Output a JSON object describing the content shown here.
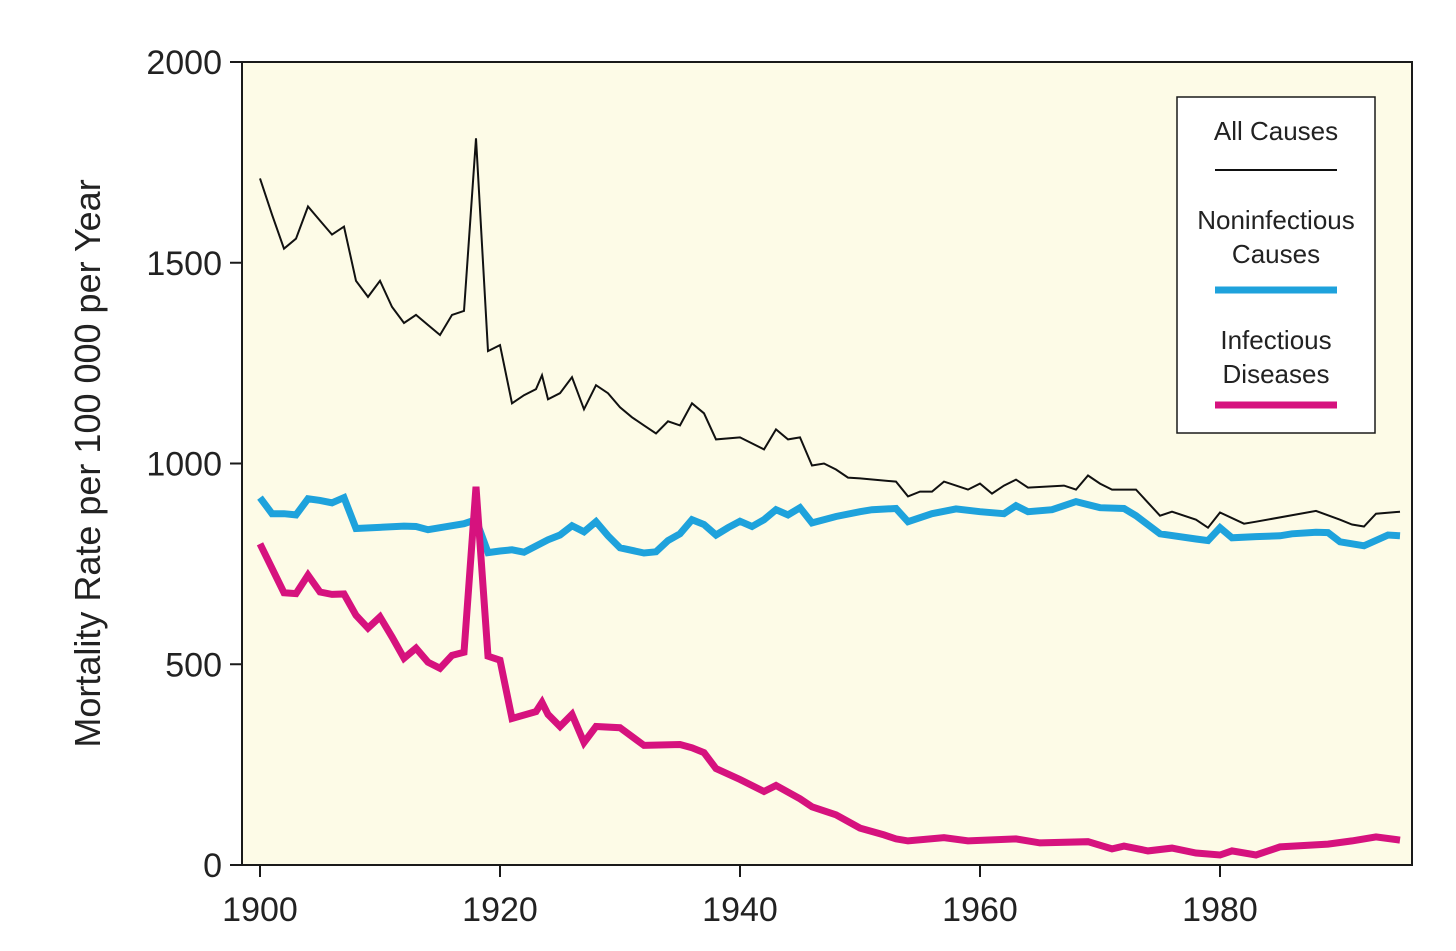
{
  "chart_data": {
    "type": "line",
    "title": "",
    "xlabel": "",
    "ylabel": "Mortality Rate per 100 000 per Year",
    "xlim": [
      1898.5,
      1996
    ],
    "ylim": [
      0,
      2000
    ],
    "x_ticks": [
      1900,
      1920,
      1940,
      1960,
      1980
    ],
    "y_ticks": [
      0,
      500,
      1000,
      1500,
      2000
    ],
    "x_tick_labels": [
      "1900",
      "1920",
      "1940",
      "1960",
      "1980"
    ],
    "y_tick_labels": [
      "0",
      "500",
      "1000",
      "1500",
      "2000"
    ],
    "grid": false,
    "background_color": "#fdfbe7",
    "legend": {
      "position": "top-right",
      "entries": [
        {
          "lines": [
            "All Causes"
          ],
          "color": "#111111"
        },
        {
          "lines": [
            "Noninfectious",
            "Causes"
          ],
          "color": "#1ea2dc"
        },
        {
          "lines": [
            "Infectious",
            "Diseases"
          ],
          "color": "#d6127e"
        }
      ]
    },
    "series": [
      {
        "name": "All Causes",
        "color": "#111111",
        "width": 2,
        "points": [
          [
            1900,
            1710
          ],
          [
            1901,
            1620
          ],
          [
            1902,
            1535
          ],
          [
            1903,
            1560
          ],
          [
            1904,
            1640
          ],
          [
            1905,
            1605
          ],
          [
            1906,
            1570
          ],
          [
            1907,
            1590
          ],
          [
            1908,
            1455
          ],
          [
            1909,
            1415
          ],
          [
            1910,
            1455
          ],
          [
            1911,
            1390
          ],
          [
            1912,
            1350
          ],
          [
            1913,
            1370
          ],
          [
            1914,
            1345
          ],
          [
            1915,
            1320
          ],
          [
            1916,
            1370
          ],
          [
            1917,
            1380
          ],
          [
            1918,
            1810
          ],
          [
            1919,
            1280
          ],
          [
            1920,
            1295
          ],
          [
            1921,
            1150
          ],
          [
            1922,
            1170
          ],
          [
            1923,
            1185
          ],
          [
            1923.5,
            1220
          ],
          [
            1924,
            1160
          ],
          [
            1925,
            1175
          ],
          [
            1926,
            1215
          ],
          [
            1927,
            1135
          ],
          [
            1928,
            1195
          ],
          [
            1929,
            1175
          ],
          [
            1930,
            1140
          ],
          [
            1931,
            1115
          ],
          [
            1932,
            1095
          ],
          [
            1933,
            1075
          ],
          [
            1934,
            1105
          ],
          [
            1935,
            1095
          ],
          [
            1936,
            1150
          ],
          [
            1937,
            1125
          ],
          [
            1938,
            1060
          ],
          [
            1940,
            1065
          ],
          [
            1942,
            1035
          ],
          [
            1943,
            1085
          ],
          [
            1944,
            1060
          ],
          [
            1945,
            1065
          ],
          [
            1946,
            995
          ],
          [
            1947,
            1000
          ],
          [
            1948,
            985
          ],
          [
            1949,
            965
          ],
          [
            1950,
            963
          ],
          [
            1953,
            955
          ],
          [
            1954,
            918
          ],
          [
            1955,
            930
          ],
          [
            1956,
            930
          ],
          [
            1957,
            955
          ],
          [
            1958,
            945
          ],
          [
            1959,
            935
          ],
          [
            1960,
            950
          ],
          [
            1961,
            925
          ],
          [
            1962,
            945
          ],
          [
            1963,
            960
          ],
          [
            1964,
            940
          ],
          [
            1967,
            945
          ],
          [
            1968,
            935
          ],
          [
            1969,
            970
          ],
          [
            1970,
            950
          ],
          [
            1971,
            935
          ],
          [
            1973,
            935
          ],
          [
            1975,
            870
          ],
          [
            1976,
            880
          ],
          [
            1978,
            860
          ],
          [
            1979,
            840
          ],
          [
            1980,
            878
          ],
          [
            1982,
            850
          ],
          [
            1983,
            855
          ],
          [
            1988,
            882
          ],
          [
            1990,
            860
          ],
          [
            1991,
            848
          ],
          [
            1992,
            843
          ],
          [
            1993,
            875
          ],
          [
            1995,
            880
          ]
        ]
      },
      {
        "name": "Noninfectious Causes",
        "color": "#1ea2dc",
        "width": 7,
        "points": [
          [
            1900,
            915
          ],
          [
            1901,
            875
          ],
          [
            1902,
            875
          ],
          [
            1903,
            872
          ],
          [
            1904,
            912
          ],
          [
            1905,
            908
          ],
          [
            1906,
            902
          ],
          [
            1907,
            915
          ],
          [
            1908,
            838
          ],
          [
            1912,
            844
          ],
          [
            1913,
            843
          ],
          [
            1914,
            835
          ],
          [
            1915,
            840
          ],
          [
            1917,
            850
          ],
          [
            1918,
            860
          ],
          [
            1919,
            778
          ],
          [
            1920,
            782
          ],
          [
            1921,
            785
          ],
          [
            1922,
            779
          ],
          [
            1924,
            810
          ],
          [
            1925,
            822
          ],
          [
            1926,
            845
          ],
          [
            1927,
            830
          ],
          [
            1928,
            855
          ],
          [
            1929,
            820
          ],
          [
            1930,
            790
          ],
          [
            1932,
            777
          ],
          [
            1933,
            780
          ],
          [
            1934,
            808
          ],
          [
            1935,
            825
          ],
          [
            1936,
            860
          ],
          [
            1937,
            848
          ],
          [
            1938,
            822
          ],
          [
            1939,
            840
          ],
          [
            1940,
            856
          ],
          [
            1941,
            843
          ],
          [
            1942,
            860
          ],
          [
            1943,
            885
          ],
          [
            1944,
            872
          ],
          [
            1945,
            890
          ],
          [
            1946,
            852
          ],
          [
            1948,
            868
          ],
          [
            1950,
            880
          ],
          [
            1951,
            885
          ],
          [
            1953,
            888
          ],
          [
            1954,
            855
          ],
          [
            1956,
            875
          ],
          [
            1958,
            887
          ],
          [
            1960,
            880
          ],
          [
            1962,
            875
          ],
          [
            1963,
            895
          ],
          [
            1964,
            880
          ],
          [
            1966,
            885
          ],
          [
            1968,
            905
          ],
          [
            1970,
            890
          ],
          [
            1972,
            888
          ],
          [
            1973,
            870
          ],
          [
            1975,
            825
          ],
          [
            1978,
            812
          ],
          [
            1979,
            808
          ],
          [
            1980,
            840
          ],
          [
            1981,
            815
          ],
          [
            1983,
            818
          ],
          [
            1985,
            820
          ],
          [
            1986,
            825
          ],
          [
            1988,
            829
          ],
          [
            1989,
            828
          ],
          [
            1990,
            805
          ],
          [
            1992,
            795
          ],
          [
            1994,
            822
          ],
          [
            1995,
            820
          ]
        ]
      },
      {
        "name": "Infectious Diseases",
        "color": "#d6127e",
        "width": 7,
        "points": [
          [
            1900,
            800
          ],
          [
            1902,
            678
          ],
          [
            1903,
            676
          ],
          [
            1904,
            722
          ],
          [
            1905,
            680
          ],
          [
            1906,
            674
          ],
          [
            1907,
            675
          ],
          [
            1908,
            622
          ],
          [
            1909,
            590
          ],
          [
            1910,
            618
          ],
          [
            1911,
            568
          ],
          [
            1912,
            515
          ],
          [
            1913,
            540
          ],
          [
            1914,
            505
          ],
          [
            1915,
            490
          ],
          [
            1916,
            522
          ],
          [
            1917,
            530
          ],
          [
            1918,
            942
          ],
          [
            1919,
            520
          ],
          [
            1920,
            510
          ],
          [
            1921,
            365
          ],
          [
            1923,
            382
          ],
          [
            1923.5,
            405
          ],
          [
            1924,
            375
          ],
          [
            1925,
            345
          ],
          [
            1926,
            375
          ],
          [
            1927,
            305
          ],
          [
            1928,
            345
          ],
          [
            1930,
            342
          ],
          [
            1932,
            298
          ],
          [
            1935,
            300
          ],
          [
            1936,
            292
          ],
          [
            1937,
            280
          ],
          [
            1938,
            240
          ],
          [
            1940,
            213
          ],
          [
            1942,
            183
          ],
          [
            1943,
            198
          ],
          [
            1945,
            165
          ],
          [
            1946,
            145
          ],
          [
            1948,
            125
          ],
          [
            1950,
            92
          ],
          [
            1952,
            75
          ],
          [
            1953,
            65
          ],
          [
            1954,
            60
          ],
          [
            1957,
            68
          ],
          [
            1959,
            60
          ],
          [
            1963,
            65
          ],
          [
            1965,
            55
          ],
          [
            1969,
            58
          ],
          [
            1971,
            40
          ],
          [
            1972,
            47
          ],
          [
            1974,
            35
          ],
          [
            1976,
            42
          ],
          [
            1978,
            30
          ],
          [
            1980,
            25
          ],
          [
            1981,
            35
          ],
          [
            1983,
            25
          ],
          [
            1985,
            45
          ],
          [
            1989,
            52
          ],
          [
            1991,
            60
          ],
          [
            1993,
            70
          ],
          [
            1995,
            62
          ]
        ]
      }
    ]
  }
}
